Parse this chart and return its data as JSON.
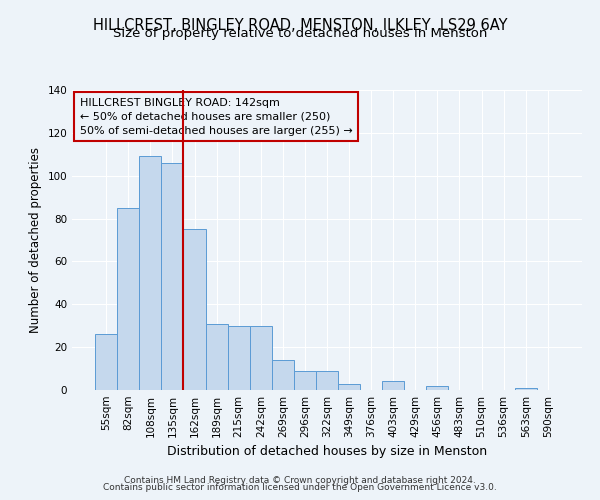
{
  "title1": "HILLCREST, BINGLEY ROAD, MENSTON, ILKLEY, LS29 6AY",
  "title2": "Size of property relative to detached houses in Menston",
  "xlabel": "Distribution of detached houses by size in Menston",
  "ylabel": "Number of detached properties",
  "categories": [
    "55sqm",
    "82sqm",
    "108sqm",
    "135sqm",
    "162sqm",
    "189sqm",
    "215sqm",
    "242sqm",
    "269sqm",
    "296sqm",
    "322sqm",
    "349sqm",
    "376sqm",
    "403sqm",
    "429sqm",
    "456sqm",
    "483sqm",
    "510sqm",
    "536sqm",
    "563sqm",
    "590sqm"
  ],
  "values": [
    26,
    85,
    109,
    106,
    75,
    31,
    30,
    30,
    14,
    9,
    9,
    3,
    0,
    4,
    0,
    2,
    0,
    0,
    0,
    1,
    0
  ],
  "bar_color": "#c5d8ed",
  "bar_edge_color": "#5b9bd5",
  "vline_x": 3.5,
  "vline_color": "#c00000",
  "annotation_line1": "HILLCREST BINGLEY ROAD: 142sqm",
  "annotation_line2": "← 50% of detached houses are smaller (250)",
  "annotation_line3": "50% of semi-detached houses are larger (255) →",
  "ylim": [
    0,
    140
  ],
  "footnote1": "Contains HM Land Registry data © Crown copyright and database right 2024.",
  "footnote2": "Contains public sector information licensed under the Open Government Licence v3.0.",
  "bg_color": "#edf3f9",
  "grid_color": "#d0dce8",
  "title1_fontsize": 10.5,
  "title2_fontsize": 9.5,
  "xlabel_fontsize": 9,
  "ylabel_fontsize": 8.5,
  "tick_fontsize": 7.5,
  "annot_fontsize": 8,
  "footnote_fontsize": 6.5
}
